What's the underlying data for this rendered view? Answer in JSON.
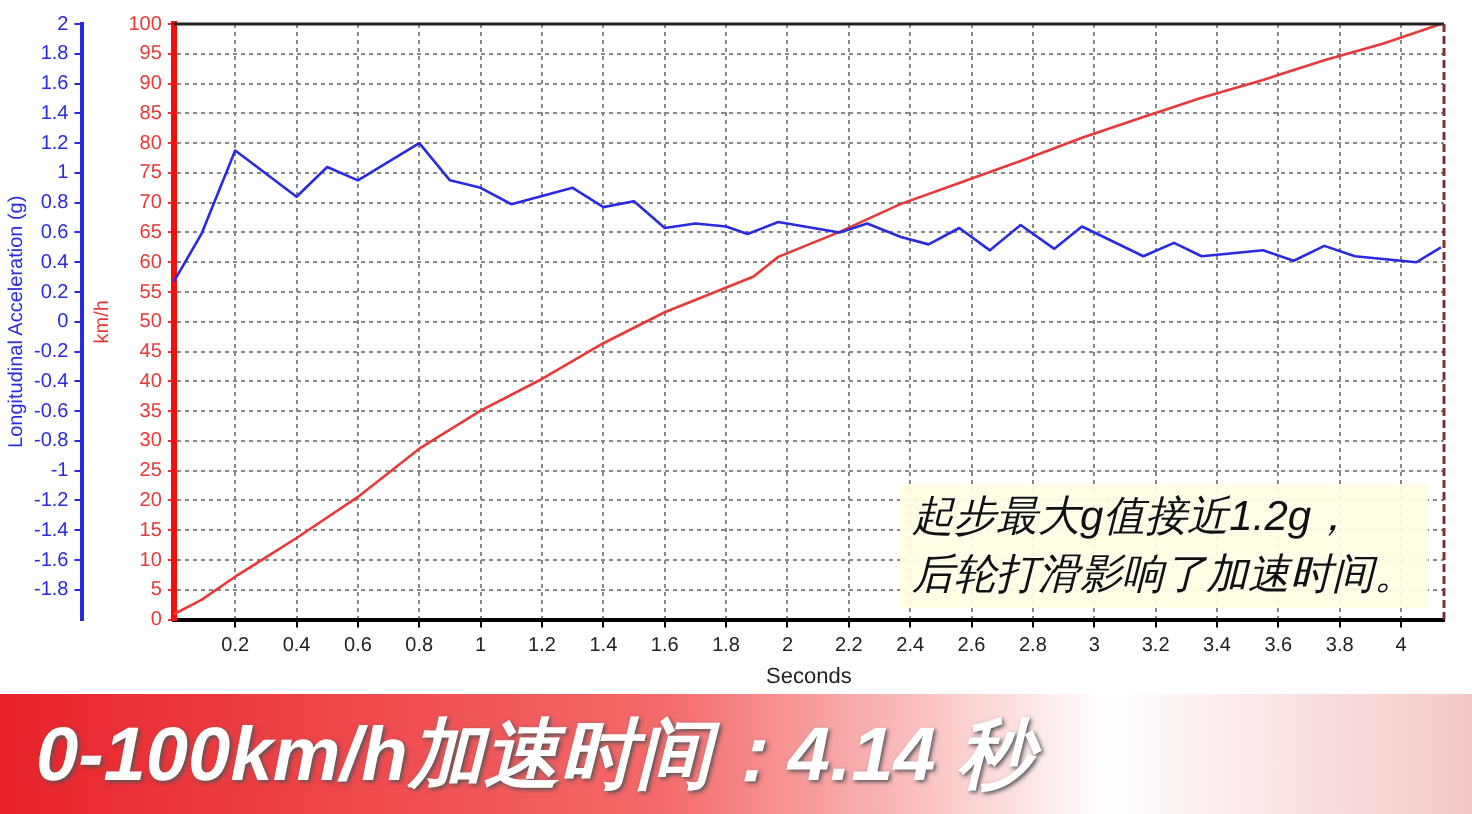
{
  "chart_data": {
    "type": "line",
    "title": "0-100km/h加速时间：4.14 秒",
    "annotations": [
      "起步最大g值接近1.2g，",
      "后轮打滑影响了加速时间。"
    ],
    "xlabel": "Seconds",
    "ylabel": "Longitudinal Acceleration (g)",
    "y2label": "km/h",
    "xlim": [
      0,
      4.14
    ],
    "xticks": [
      0.2,
      0.4,
      0.6,
      0.8,
      1,
      1.2,
      1.4,
      1.6,
      1.8,
      2,
      2.2,
      2.4,
      2.6,
      2.8,
      3,
      3.2,
      3.4,
      3.6,
      3.8,
      4
    ],
    "ylim": [
      -2,
      2
    ],
    "yticks": [
      -1.8,
      -1.6,
      -1.4,
      -1.2,
      -1,
      -0.8,
      -0.6,
      -0.4,
      -0.2,
      0,
      0.2,
      0.4,
      0.6,
      0.8,
      1,
      1.2,
      1.4,
      1.6,
      1.8,
      2
    ],
    "y2lim": [
      0,
      100
    ],
    "y2ticks": [
      0,
      5,
      10,
      15,
      20,
      25,
      30,
      35,
      40,
      45,
      50,
      55,
      60,
      65,
      70,
      75,
      80,
      85,
      90,
      95,
      100
    ],
    "grid": true,
    "marker": "none",
    "series": [
      {
        "color": "#2a2ae0",
        "x": [
          0,
          0.09,
          0.2,
          0.4,
          0.5,
          0.6,
          0.8,
          0.9,
          1.0,
          1.1,
          1.3,
          1.4,
          1.5,
          1.6,
          1.7,
          1.8,
          1.87,
          1.97,
          2.17,
          2.26,
          2.37,
          2.46,
          2.56,
          2.66,
          2.76,
          2.87,
          2.96,
          3.16,
          3.26,
          3.35,
          3.55,
          3.65,
          3.75,
          3.85,
          4.05,
          4.13
        ],
        "values": [
          0.27,
          0.59,
          1.15,
          0.84,
          1.04,
          0.95,
          1.2,
          0.95,
          0.9,
          0.79,
          0.9,
          0.77,
          0.81,
          0.63,
          0.66,
          0.64,
          0.59,
          0.67,
          0.6,
          0.66,
          0.57,
          0.52,
          0.63,
          0.48,
          0.65,
          0.49,
          0.64,
          0.44,
          0.53,
          0.44,
          0.48,
          0.41,
          0.51,
          0.44,
          0.4,
          0.5
        ]
      },
      {
        "color": "#e83838",
        "axis": "y2",
        "x": [
          0,
          0.09,
          0.2,
          0.4,
          0.6,
          0.8,
          1.0,
          1.2,
          1.4,
          1.6,
          1.89,
          1.97,
          2.17,
          2.37,
          2.56,
          2.76,
          2.96,
          3.16,
          3.35,
          3.55,
          3.75,
          3.94,
          4.13
        ],
        "values": [
          0.9,
          3.3,
          7.2,
          13.7,
          20.6,
          28.7,
          35.1,
          40.4,
          46.4,
          51.6,
          57.6,
          60.9,
          65.1,
          69.8,
          73.3,
          77,
          80.9,
          84.4,
          87.6,
          90.6,
          93.9,
          96.7,
          100
        ]
      }
    ]
  }
}
